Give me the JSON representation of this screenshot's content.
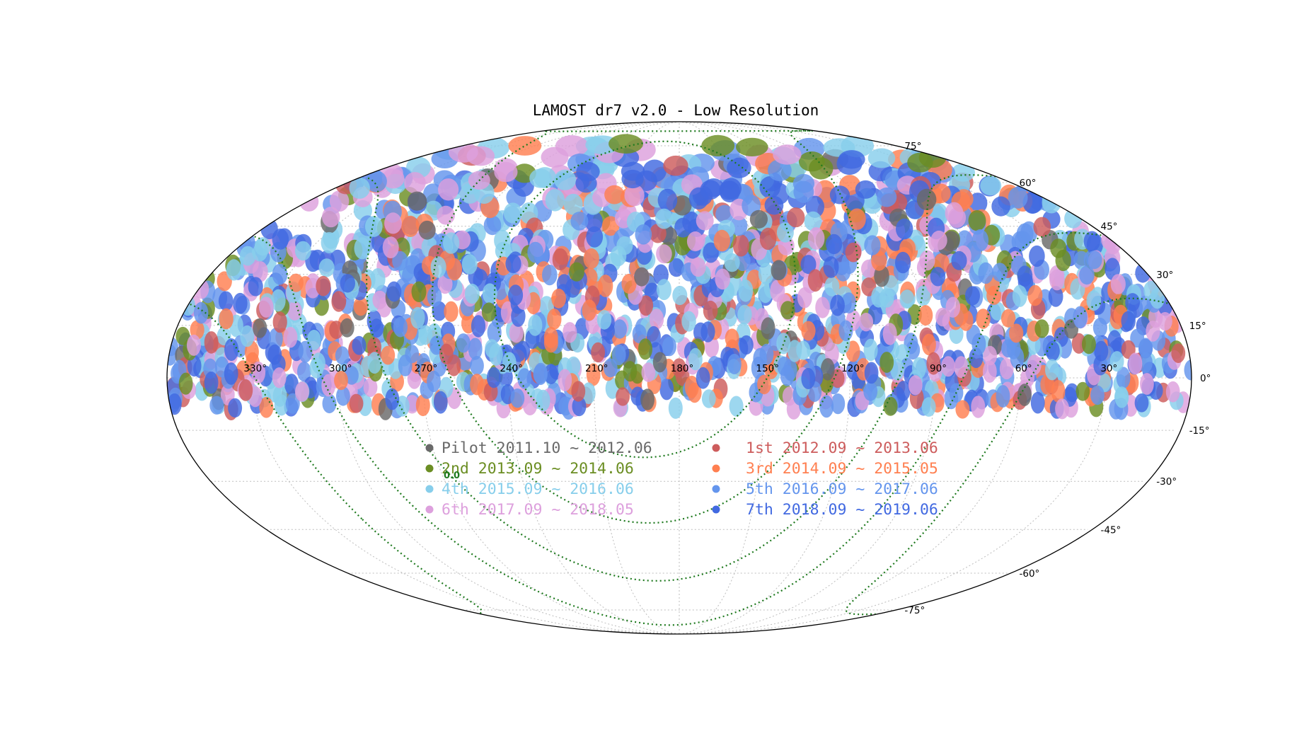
{
  "chart_data": {
    "type": "scatter",
    "projection": "mollweide",
    "title": "LAMOST dr7 v2.0 - Low Resolution",
    "x_ticks": [
      "330°",
      "300°",
      "270°",
      "240°",
      "210°",
      "180°",
      "150°",
      "120°",
      "90°",
      "60°",
      "30°"
    ],
    "y_ticks": [
      "75°",
      "60°",
      "45°",
      "30°",
      "15°",
      "0°",
      "-15°",
      "-30°",
      "-45°",
      "-60°",
      "-75°"
    ],
    "galactic_plane_label": "0.0",
    "grid": true,
    "xlim": [
      360,
      0
    ],
    "ylim": [
      -90,
      90
    ],
    "legend_placement": "center",
    "series": [
      {
        "name": "Pilot 2011.10 ~ 2012.06",
        "color": "#696969",
        "density": 0.03
      },
      {
        "name": "1st 2012.09 ~ 2013.06",
        "color": "#cd5c5c",
        "density": 0.06
      },
      {
        "name": "2nd 2013.09 ~ 2014.06",
        "color": "#6b8e23",
        "density": 0.07
      },
      {
        "name": "3rd 2014.09 ~ 2015.05",
        "color": "#ff7f50",
        "density": 0.12
      },
      {
        "name": "4th 2015.09 ~ 2016.06",
        "color": "#87ceeb",
        "density": 0.17
      },
      {
        "name": "5th 2016.09 ~ 2017.06",
        "color": "#6495ed",
        "density": 0.21
      },
      {
        "name": "6th 2017.09 ~ 2018.05",
        "color": "#dda0dd",
        "density": 0.16
      },
      {
        "name": "7th 2018.09 ~ 2019.06",
        "color": "#4169e1",
        "density": 0.18
      }
    ]
  }
}
